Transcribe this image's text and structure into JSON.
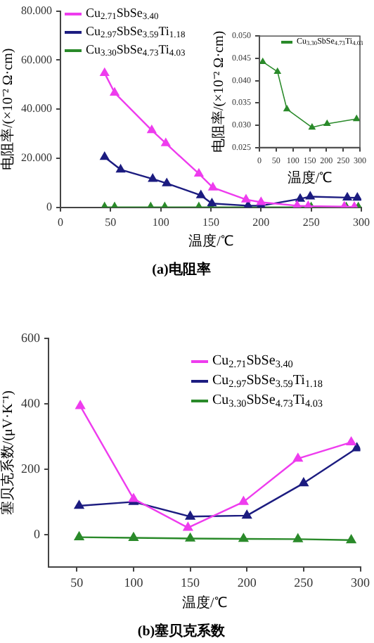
{
  "chart_data": [
    {
      "type": "line",
      "title": "(a)电阻率",
      "xlabel": "温度/℃",
      "ylabel": "电阻率/(×10⁻² Ω·cm)",
      "legend": "top left",
      "marker": "triangle",
      "grid": false,
      "xlim": [
        0,
        300
      ],
      "xticks": [
        0,
        50,
        100,
        150,
        200,
        250,
        300
      ],
      "ylim": [
        0,
        80
      ],
      "yticks": [
        {
          "value": 0,
          "label": "0"
        },
        {
          "value": 20,
          "label": "20.000"
        },
        {
          "value": 40,
          "label": "40.000"
        },
        {
          "value": 60,
          "label": "60.000"
        },
        {
          "value": 80,
          "label": "80.000"
        }
      ],
      "series": [
        {
          "name": "Cu$_{2.71}$SbSe$_{3.40}$",
          "color": "#ee3cee",
          "x": [
            44,
            54,
            91,
            105,
            138,
            152,
            185,
            200,
            236,
            247,
            283,
            293
          ],
          "values": [
            54.7,
            46.7,
            31.4,
            26.1,
            13.7,
            8.1,
            3.2,
            2.1,
            0.7,
            0.5,
            0.3,
            0.2
          ]
        },
        {
          "name": "Cu$_{2.97}$SbSe$_{3.59}$Ti$_{1.18}$",
          "color": "#1c1c80",
          "x": [
            44,
            60,
            92,
            106,
            140,
            151,
            187,
            200,
            239,
            249,
            286,
            296
          ],
          "values": [
            20.5,
            15.4,
            11.6,
            9.8,
            4.9,
            1.6,
            0.7,
            0.7,
            3.5,
            4.4,
            4.0,
            3.9
          ]
        },
        {
          "name": "Cu$_{3.30}$SbSe$_{4.73}$Ti$_{4.03}$",
          "color": "#2a8a2a",
          "x": [
            44,
            54,
            90,
            104,
            138,
            150,
            188,
            200,
            236,
            250,
            285,
            297
          ],
          "values": [
            0,
            0,
            0,
            0,
            0,
            0,
            0,
            0,
            0,
            0,
            0,
            0
          ]
        }
      ]
    },
    {
      "type": "line",
      "xlabel": "温度/℃",
      "ylabel": "电阻率/(×10⁻² Ω·cm)",
      "legend": "top",
      "marker": "triangle",
      "grid": false,
      "xlim": [
        0,
        300
      ],
      "xticks": [
        0,
        50,
        100,
        150,
        200,
        250,
        300
      ],
      "ylim": [
        0.025,
        0.05
      ],
      "yticks": [
        {
          "value": 0.025,
          "label": "0.025"
        },
        {
          "value": 0.03,
          "label": "0.030"
        },
        {
          "value": 0.035,
          "label": "0.035"
        },
        {
          "value": 0.04,
          "label": "0.040"
        },
        {
          "value": 0.045,
          "label": "0.045"
        },
        {
          "value": 0.05,
          "label": "0.050"
        }
      ],
      "series": [
        {
          "name": "Cu$_{3.30}$SbSe$_{4.73}$Ti$_{4.03}$",
          "color": "#2a8a2a",
          "x": [
            10,
            54,
            82,
            157,
            202,
            290
          ],
          "values": [
            0.0442,
            0.042,
            0.0336,
            0.0295,
            0.0303,
            0.0314
          ]
        }
      ]
    },
    {
      "type": "line",
      "title": "(b)塞贝克系数",
      "xlabel": "温度/℃",
      "ylabel": "塞贝克系数/(μV·K⁻¹)",
      "legend": "top right",
      "marker": "triangle",
      "grid": false,
      "xlim": [
        25,
        300
      ],
      "xticks": [
        50,
        100,
        150,
        200,
        250,
        300
      ],
      "ylim": [
        -100,
        600
      ],
      "yticks": [
        0,
        200,
        400,
        600
      ],
      "series": [
        {
          "name": "Cu$_{2.71}$SbSe$_{3.40}$",
          "color": "#ee3cee",
          "x": [
            53,
            100,
            148,
            197,
            245,
            292
          ],
          "values": [
            393,
            109,
            21,
            100,
            232,
            282
          ]
        },
        {
          "name": "Cu$_{2.97}$SbSe$_{3.59}$Ti$_{1.18}$",
          "color": "#1c1c80",
          "x": [
            52,
            100,
            150,
            200,
            250,
            297
          ],
          "values": [
            88,
            100,
            55,
            58,
            157,
            264
          ]
        },
        {
          "name": "Cu$_{3.30}$SbSe$_{4.73}$Ti$_{4.03}$",
          "color": "#2a8a2a",
          "x": [
            52,
            100,
            150,
            197,
            245,
            292
          ],
          "values": [
            -8,
            -10,
            -12,
            -13,
            -14,
            -17
          ]
        }
      ]
    }
  ]
}
